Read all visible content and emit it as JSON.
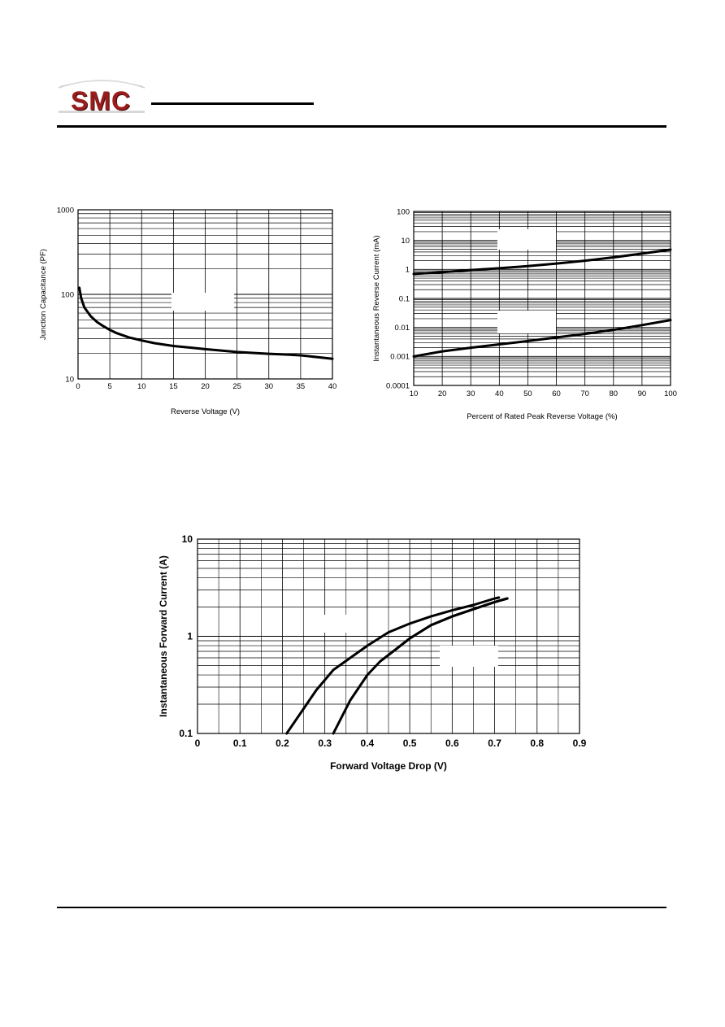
{
  "logo": {
    "text": "SMC",
    "colors": {
      "primary": "#9b1c1c",
      "dark": "#4a0c0c",
      "swoosh": "#cfcfcf"
    }
  },
  "chart_data": [
    {
      "type": "line",
      "xlabel": "Reverse Voltage (V)",
      "ylabel": "Junction Capacitance (PF)",
      "xlim": [
        0,
        40
      ],
      "ylim": [
        10,
        1000
      ],
      "yscale": "log",
      "x_ticks": [
        "0",
        "5",
        "10",
        "15",
        "20",
        "25",
        "30",
        "35",
        "40"
      ],
      "y_ticks": [
        "10",
        "100",
        "1000"
      ],
      "grid": true,
      "series": [
        {
          "x": [
            0.2,
            0.5,
            1,
            2,
            3,
            4,
            5,
            6,
            8,
            10,
            12,
            15,
            18,
            20,
            22,
            25,
            28,
            30,
            33,
            35,
            38,
            40
          ],
          "values": [
            120,
            90,
            70,
            55,
            47,
            42,
            38,
            35,
            31,
            28.5,
            26.5,
            24.5,
            23.3,
            22.5,
            21.8,
            20.8,
            20.2,
            19.8,
            19.4,
            19,
            18,
            17.3
          ]
        }
      ]
    },
    {
      "type": "line",
      "xlabel": "Percent of Rated Peak Reverse Voltage (%)",
      "ylabel": "Instantaneous Reverse Current (mA)",
      "xlim": [
        10,
        100
      ],
      "ylim": [
        0.0001,
        100
      ],
      "yscale": "log",
      "x_ticks": [
        "10",
        "20",
        "30",
        "40",
        "50",
        "60",
        "70",
        "80",
        "90",
        "100"
      ],
      "y_ticks": [
        "0.0001",
        "0.001",
        "0.01",
        "0.1",
        "1",
        "10",
        "100"
      ],
      "grid": true,
      "series": [
        {
          "x": [
            10,
            20,
            30,
            40,
            50,
            60,
            70,
            80,
            90,
            100
          ],
          "values": [
            0.7,
            0.8,
            0.95,
            1.1,
            1.3,
            1.6,
            2.0,
            2.6,
            3.5,
            4.8
          ]
        },
        {
          "x": [
            10,
            20,
            30,
            40,
            50,
            60,
            70,
            80,
            90,
            100
          ],
          "values": [
            0.001,
            0.0015,
            0.002,
            0.0026,
            0.0034,
            0.0045,
            0.006,
            0.0082,
            0.012,
            0.018
          ]
        }
      ]
    },
    {
      "type": "line",
      "xlabel": "Forward Voltage Drop (V)",
      "ylabel": "Instantaneous Forward Current (A)",
      "xlim": [
        0,
        0.9
      ],
      "ylim": [
        0.1,
        10
      ],
      "yscale": "log",
      "x_ticks": [
        "0",
        "0.1",
        "0.2",
        "0.3",
        "0.4",
        "0.5",
        "0.6",
        "0.7",
        "0.8",
        "0.9"
      ],
      "y_ticks": [
        "0.1",
        "1",
        "10"
      ],
      "grid": true,
      "series": [
        {
          "x": [
            0.21,
            0.25,
            0.28,
            0.32,
            0.36,
            0.4,
            0.45,
            0.5,
            0.55,
            0.6,
            0.65,
            0.7,
            0.71
          ],
          "values": [
            0.1,
            0.18,
            0.28,
            0.45,
            0.6,
            0.8,
            1.1,
            1.35,
            1.6,
            1.85,
            2.1,
            2.45,
            2.5
          ]
        },
        {
          "x": [
            0.32,
            0.36,
            0.4,
            0.43,
            0.47,
            0.5,
            0.55,
            0.6,
            0.65,
            0.7,
            0.73
          ],
          "values": [
            0.1,
            0.22,
            0.4,
            0.55,
            0.75,
            0.95,
            1.3,
            1.6,
            1.9,
            2.25,
            2.45
          ]
        },
        {
          "x": [
            0.43,
            0.47,
            0.5,
            0.55,
            0.6,
            0.65,
            0.7,
            0.73
          ],
          "values": [
            0.55,
            0.75,
            0.95,
            1.3,
            1.6,
            1.9,
            2.25,
            2.45
          ]
        }
      ]
    }
  ]
}
